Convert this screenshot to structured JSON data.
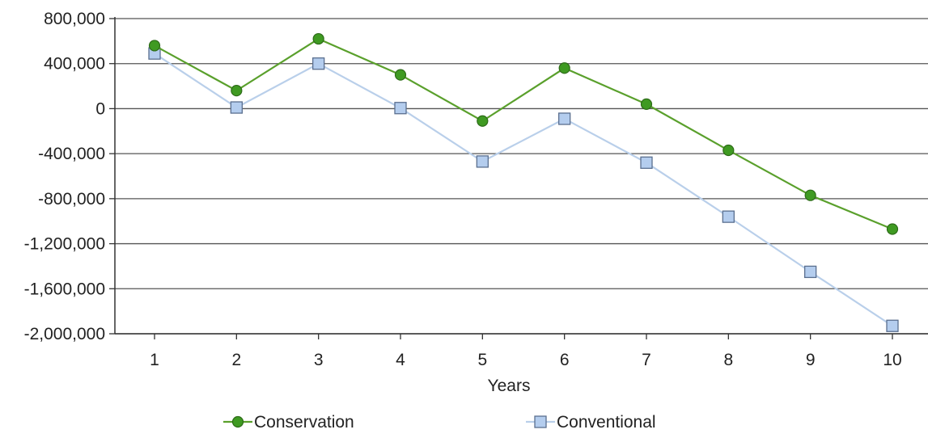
{
  "chart_data": {
    "type": "line",
    "title": "",
    "xlabel": "Years",
    "ylabel": "",
    "categories": [
      "1",
      "2",
      "3",
      "4",
      "5",
      "6",
      "7",
      "8",
      "9",
      "10"
    ],
    "yticks": [
      "800,000",
      "400,000",
      "0",
      "-400,000",
      "-800,000",
      "-1,200,000",
      "-1,600,000",
      "-2,000,000"
    ],
    "ylim": [
      -2000000,
      800000
    ],
    "grid": true,
    "legend_position": "bottom",
    "series": [
      {
        "name": "Conservation",
        "marker": "circle",
        "line_color": "#5aa02c",
        "marker_fill": "#3f9a22",
        "marker_stroke": "#2d6b18",
        "values": [
          560000,
          160000,
          620000,
          300000,
          -110000,
          360000,
          40000,
          -370000,
          -770000,
          -1070000
        ]
      },
      {
        "name": "Conventional",
        "marker": "square",
        "line_color": "#b9cfea",
        "marker_fill": "#b4cdee",
        "marker_stroke": "#5a6f8f",
        "values": [
          490000,
          10000,
          400000,
          5000,
          -470000,
          -90000,
          -480000,
          -960000,
          -1450000,
          -1930000
        ]
      }
    ]
  }
}
